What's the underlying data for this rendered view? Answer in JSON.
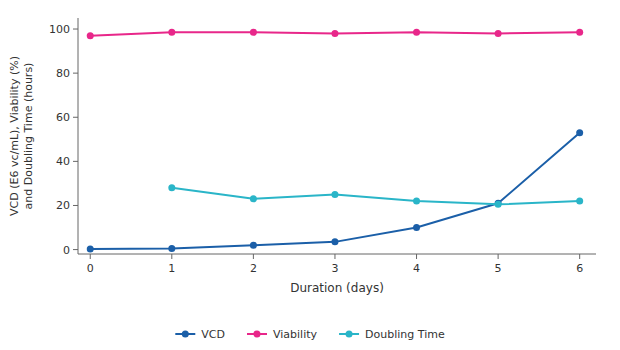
{
  "chart_data": {
    "type": "line",
    "x": [
      0,
      1,
      2,
      3,
      4,
      5,
      6
    ],
    "series": [
      {
        "name": "VCD",
        "color": "#1b5fa8",
        "marker": "circle",
        "values": [
          0.3,
          0.5,
          2.0,
          3.5,
          10.0,
          21.0,
          53.0
        ]
      },
      {
        "name": "Viability",
        "color": "#e8278a",
        "marker": "circle",
        "values": [
          97,
          98.5,
          98.5,
          98.0,
          98.5,
          98.0,
          98.5
        ]
      },
      {
        "name": "Doubling Time",
        "color": "#2ab5c8",
        "marker": "circle",
        "values": [
          null,
          28,
          23,
          25,
          22,
          20.5,
          22
        ]
      }
    ],
    "xlabel": "Duration (days)",
    "ylabel": "VCD (E6 vc/mL), Viability (%)\nand Doubling Time (hours)",
    "xlim": [
      -0.15,
      6.2
    ],
    "ylim": [
      -2,
      105
    ],
    "xticks": [
      0,
      1,
      2,
      3,
      4,
      5,
      6
    ],
    "yticks": [
      0,
      20,
      40,
      60,
      80,
      100
    ],
    "grid": false,
    "legend": "bottom"
  }
}
